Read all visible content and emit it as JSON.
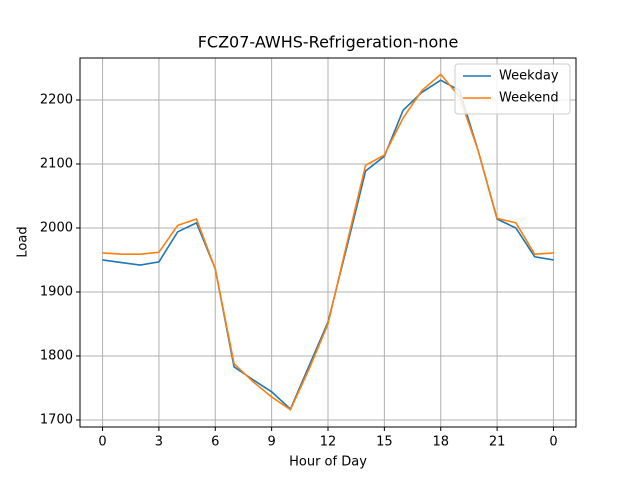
{
  "chart_data": {
    "type": "line",
    "title": "FCZ07-AWHS-Refrigeration-none",
    "x_label": "Hour of Day",
    "y_label": "Load",
    "x": [
      0,
      1,
      2,
      3,
      4,
      5,
      6,
      7,
      8,
      9,
      10,
      11,
      12,
      13,
      14,
      15,
      16,
      17,
      18,
      19,
      20,
      21,
      22,
      23,
      24
    ],
    "series": [
      {
        "name": "Weekday",
        "color": "#1f77b4",
        "values": [
          1950,
          1946,
          1942,
          1947,
          1994,
          2008,
          1936,
          1783,
          1763,
          1744,
          1717,
          1785,
          1853,
          1970,
          2089,
          2112,
          2184,
          2212,
          2231,
          2215,
          2120,
          2014,
          2000,
          1955,
          1950
        ]
      },
      {
        "name": "Weekend",
        "color": "#ff7f0e",
        "values": [
          1961,
          1959,
          1959,
          1962,
          2004,
          2014,
          1936,
          1788,
          1760,
          1736,
          1716,
          1780,
          1850,
          1975,
          2098,
          2114,
          2172,
          2215,
          2240,
          2205,
          2120,
          2015,
          2008,
          1959,
          1961
        ]
      }
    ],
    "xlim": [
      -1.2,
      25.2
    ],
    "xticks": [
      0,
      3,
      6,
      9,
      12,
      15,
      18,
      21,
      {
        "value": 24,
        "label": "0"
      }
    ],
    "ylim": [
      1689,
      2265.6
    ],
    "yticks": [
      1700,
      1800,
      1900,
      2000,
      2100,
      2200
    ],
    "grid": true,
    "legend": "upper right"
  }
}
